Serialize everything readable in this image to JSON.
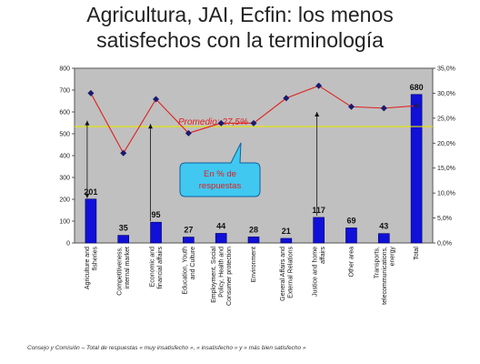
{
  "title_line1": "Agricultura, JAI, Ecfin: los menos",
  "title_line2": "satisfechos con la terminología",
  "footer": "Consejo y Comisión – Total de respuestas « muy insatisfecho », « insatisfecho » y « más bien satisfecho »",
  "chart_data": {
    "type": "bar",
    "categories": [
      [
        "Agriculture and",
        "fisheries"
      ],
      [
        "Competitiveness,",
        "internal market"
      ],
      [
        "Economic and",
        "financial affairs"
      ],
      [
        "Education, Youth",
        "and Culture"
      ],
      [
        "Employment, Social",
        "Policy, Health and",
        "Consumer protection"
      ],
      [
        "Environment"
      ],
      [
        "General Affairs and",
        "External Relations"
      ],
      [
        "Justice and home",
        "affairs"
      ],
      [
        "Other area"
      ],
      [
        "Transports,",
        "telecommunications,",
        "energy"
      ],
      [
        "Total"
      ]
    ],
    "bars": {
      "values": [
        201,
        35,
        95,
        27,
        44,
        28,
        21,
        117,
        69,
        43,
        680
      ],
      "labels": [
        "201",
        "35",
        "95",
        "27",
        "44",
        "28",
        "21",
        "117",
        "69",
        "43",
        "680"
      ],
      "color": "#1010d8"
    },
    "line": {
      "values": [
        30.0,
        18.0,
        28.8,
        22.0,
        24.0,
        24.0,
        29.0,
        31.5,
        27.3,
        27.0,
        27.5
      ],
      "color": "#e02020",
      "marker_color": "#1a1a6e"
    },
    "average_line": {
      "value": 27.5,
      "label": "Promedio: 27,5%",
      "color": "#e6e600"
    },
    "y_left": {
      "min": 0,
      "max": 800,
      "ticks": [
        0,
        100,
        200,
        300,
        400,
        500,
        600,
        700,
        800
      ]
    },
    "y_right": {
      "min": 0,
      "max": 35,
      "ticks": [
        "0,0%",
        "5,0%",
        "10,0%",
        "15,0%",
        "20,0%",
        "25,0%",
        "30,0%",
        "35,0%"
      ]
    },
    "callout": {
      "line1": "En % de",
      "line2": "respuestas",
      "fill": "#40c8f0"
    },
    "plot_background": "#c0c0c0"
  }
}
